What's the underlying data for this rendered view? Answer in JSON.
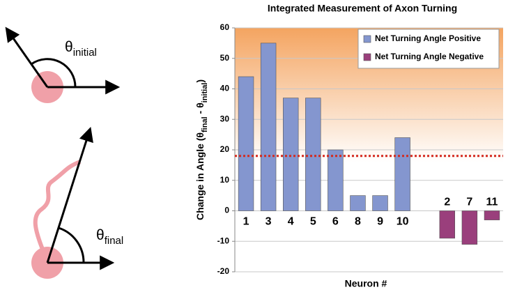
{
  "diagram": {
    "labels": [
      [
        {
          "text": "θ"
        },
        {
          "text": "initial",
          "sub": true
        }
      ],
      [
        {
          "text": "θ"
        },
        {
          "text": "final",
          "sub": true
        }
      ]
    ]
  },
  "chart_data": {
    "type": "bar",
    "title": "Integrated Measurement of Axon Turning",
    "xlabel": "Neuron #",
    "ylabel": [
      {
        "text": "Change in Angle ("
      },
      {
        "text": "θ"
      },
      {
        "text": "final",
        "sub": true
      },
      {
        "text": " - θ"
      },
      {
        "text": "initial",
        "sub": true
      },
      {
        "text": ")"
      }
    ],
    "categories": [
      "1",
      "3",
      "4",
      "5",
      "6",
      "8",
      "9",
      "10",
      null,
      "2",
      "7",
      "11"
    ],
    "series": [
      {
        "name": "Net Turning Angle Positive",
        "color": "#8496cf",
        "values": [
          44,
          55,
          37,
          37,
          20,
          5,
          5,
          24,
          null,
          null,
          null,
          null
        ]
      },
      {
        "name": "Net Turning Angle Negative",
        "color": "#9a3f7c",
        "values": [
          null,
          null,
          null,
          null,
          null,
          null,
          null,
          null,
          null,
          -9,
          -11,
          -3
        ]
      }
    ],
    "ylim": [
      -20,
      60
    ],
    "yticks": [
      -20,
      -10,
      0,
      10,
      20,
      30,
      40,
      50,
      60
    ],
    "grid": true,
    "reference_line": 18,
    "reference_color": "#d42a1e",
    "legend": "top-right"
  }
}
